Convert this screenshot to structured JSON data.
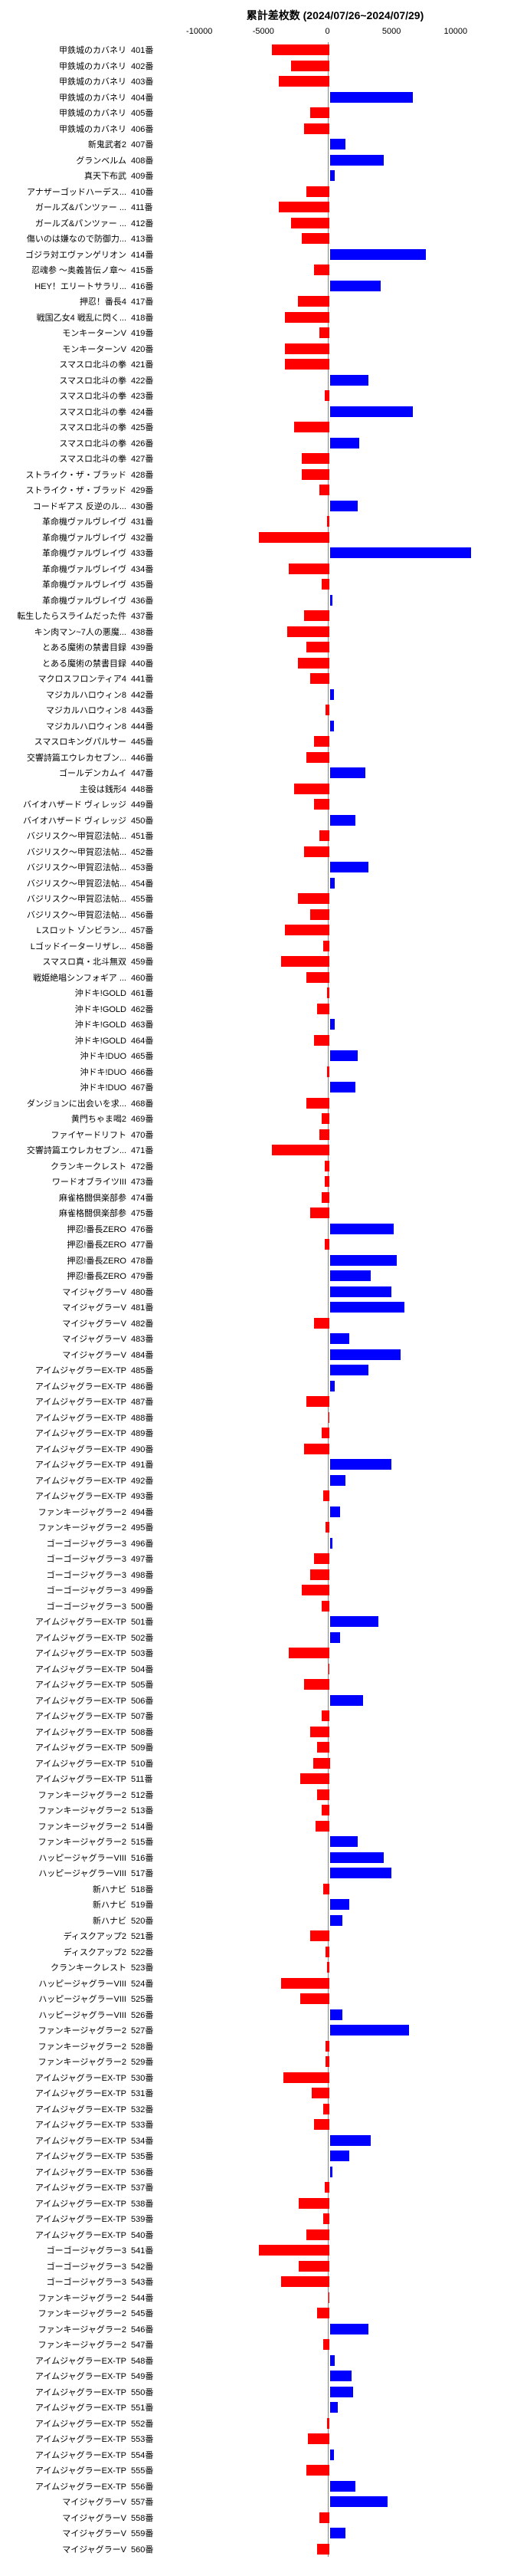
{
  "title": "累計差枚数 (2024/07/26~2024/07/29)",
  "xlim": [
    -13000,
    13000
  ],
  "xticks": [
    -10000,
    -5000,
    0,
    5000,
    10000
  ],
  "colors": {
    "pos": "#0000ff",
    "neg": "#ff0000",
    "bg": "#ffffff"
  },
  "bar_height_ratio": 0.7,
  "row_height": 20.5,
  "label_fontsize": 11,
  "title_fontsize": 14,
  "rows": [
    {
      "label": "甲鉄城のカバネリ",
      "num": "401番",
      "value": -4500
    },
    {
      "label": "甲鉄城のカバネリ",
      "num": "402番",
      "value": -3000
    },
    {
      "label": "甲鉄城のカバネリ",
      "num": "403番",
      "value": -4000
    },
    {
      "label": "甲鉄城のカバネリ",
      "num": "404番",
      "value": 6500
    },
    {
      "label": "甲鉄城のカバネリ",
      "num": "405番",
      "value": -1500
    },
    {
      "label": "甲鉄城のカバネリ",
      "num": "406番",
      "value": -2000
    },
    {
      "label": "新鬼武者2",
      "num": "407番",
      "value": 1200
    },
    {
      "label": "グランベルム",
      "num": "408番",
      "value": 4200
    },
    {
      "label": "真天下布武",
      "num": "409番",
      "value": 400
    },
    {
      "label": "アナザーゴッドハーデス...",
      "num": "410番",
      "value": -1800
    },
    {
      "label": "ガールズ&パンツァー ...",
      "num": "411番",
      "value": -4000
    },
    {
      "label": "ガールズ&パンツァー ...",
      "num": "412番",
      "value": -3000
    },
    {
      "label": "傷いのは嫌なので防御力...",
      "num": "413番",
      "value": -2200
    },
    {
      "label": "ゴジラ対エヴァンゲリオン",
      "num": "414番",
      "value": 7500
    },
    {
      "label": "忍魂参 〜奥義皆伝ノ章〜",
      "num": "415番",
      "value": -1200
    },
    {
      "label": "HEY！エリートサラリ...",
      "num": "416番",
      "value": 4000
    },
    {
      "label": "押忍！番長4",
      "num": "417番",
      "value": -2500
    },
    {
      "label": "戦国乙女4 戦乱に閃く...",
      "num": "418番",
      "value": -3500
    },
    {
      "label": "モンキーターンV",
      "num": "419番",
      "value": -800
    },
    {
      "label": "モンキーターンV",
      "num": "420番",
      "value": -3500
    },
    {
      "label": "スマスロ北斗の拳",
      "num": "421番",
      "value": -3500
    },
    {
      "label": "スマスロ北斗の拳",
      "num": "422番",
      "value": 3000
    },
    {
      "label": "スマスロ北斗の拳",
      "num": "423番",
      "value": -400
    },
    {
      "label": "スマスロ北斗の拳",
      "num": "424番",
      "value": 6500
    },
    {
      "label": "スマスロ北斗の拳",
      "num": "425番",
      "value": -2800
    },
    {
      "label": "スマスロ北斗の拳",
      "num": "426番",
      "value": 2300
    },
    {
      "label": "スマスロ北斗の拳",
      "num": "427番",
      "value": -2200
    },
    {
      "label": "ストライク・ザ・ブラッド",
      "num": "428番",
      "value": -2200
    },
    {
      "label": "ストライク・ザ・ブラッド",
      "num": "429番",
      "value": -800
    },
    {
      "label": "コードギアス 反逆のル...",
      "num": "430番",
      "value": 2200
    },
    {
      "label": "革命機ヴァルヴレイヴ",
      "num": "431番",
      "value": -200
    },
    {
      "label": "革命機ヴァルヴレイヴ",
      "num": "432番",
      "value": -5500
    },
    {
      "label": "革命機ヴァルヴレイヴ",
      "num": "433番",
      "value": 11000
    },
    {
      "label": "革命機ヴァルヴレイヴ",
      "num": "434番",
      "value": -3200
    },
    {
      "label": "革命機ヴァルヴレイヴ",
      "num": "435番",
      "value": -600
    },
    {
      "label": "革命機ヴァルヴレイヴ",
      "num": "436番",
      "value": 200
    },
    {
      "label": "転生したらスライムだった件",
      "num": "437番",
      "value": -2000
    },
    {
      "label": "キン肉マン~7人の悪魔...",
      "num": "438番",
      "value": -3300
    },
    {
      "label": "とある魔術の禁書目録",
      "num": "439番",
      "value": -1800
    },
    {
      "label": "とある魔術の禁書目録",
      "num": "440番",
      "value": -2500
    },
    {
      "label": "マクロスフロンティア4",
      "num": "441番",
      "value": -1500
    },
    {
      "label": "マジカルハロウィン8",
      "num": "442番",
      "value": 300
    },
    {
      "label": "マジカルハロウィン8",
      "num": "443番",
      "value": -300
    },
    {
      "label": "マジカルハロウィン8",
      "num": "444番",
      "value": 300
    },
    {
      "label": "スマスロキングパルサー",
      "num": "445番",
      "value": -1200
    },
    {
      "label": "交響詩篇エウレカセブン...",
      "num": "446番",
      "value": -1800
    },
    {
      "label": "ゴールデンカムイ",
      "num": "447番",
      "value": 2800
    },
    {
      "label": "主役は銭形4",
      "num": "448番",
      "value": -2800
    },
    {
      "label": "バイオハザード ヴィレッジ",
      "num": "449番",
      "value": -1200
    },
    {
      "label": "バイオハザード ヴィレッジ",
      "num": "450番",
      "value": 2000
    },
    {
      "label": "バジリスク〜甲賀忍法帖...",
      "num": "451番",
      "value": -800
    },
    {
      "label": "バジリスク〜甲賀忍法帖...",
      "num": "452番",
      "value": -2000
    },
    {
      "label": "バジリスク〜甲賀忍法帖...",
      "num": "453番",
      "value": 3000
    },
    {
      "label": "バジリスク〜甲賀忍法帖...",
      "num": "454番",
      "value": 400
    },
    {
      "label": "バジリスク〜甲賀忍法帖...",
      "num": "455番",
      "value": -2500
    },
    {
      "label": "バジリスク〜甲賀忍法帖...",
      "num": "456番",
      "value": -1500
    },
    {
      "label": "Lスロット ゾンビラン...",
      "num": "457番",
      "value": -3500
    },
    {
      "label": "Lゴッドイーターリザレ...",
      "num": "458番",
      "value": -500
    },
    {
      "label": "スマスロ真・北斗無双",
      "num": "459番",
      "value": -3800
    },
    {
      "label": "戦姫絶唱シンフォギア ...",
      "num": "460番",
      "value": -1800
    },
    {
      "label": "沖ドキ!GOLD",
      "num": "461番",
      "value": -200
    },
    {
      "label": "沖ドキ!GOLD",
      "num": "462番",
      "value": -1000
    },
    {
      "label": "沖ドキ!GOLD",
      "num": "463番",
      "value": 400
    },
    {
      "label": "沖ドキ!GOLD",
      "num": "464番",
      "value": -1200
    },
    {
      "label": "沖ドキ!DUO",
      "num": "465番",
      "value": 2200
    },
    {
      "label": "沖ドキ!DUO",
      "num": "466番",
      "value": -200
    },
    {
      "label": "沖ドキ!DUO",
      "num": "467番",
      "value": 2000
    },
    {
      "label": "ダンジョンに出会いを求...",
      "num": "468番",
      "value": -1800
    },
    {
      "label": "黄門ちゃま喝2",
      "num": "469番",
      "value": -600
    },
    {
      "label": "ファイヤードリフト",
      "num": "470番",
      "value": -800
    },
    {
      "label": "交響詩篇エウレカセブン...",
      "num": "471番",
      "value": -4500
    },
    {
      "label": "クランキークレスト",
      "num": "472番",
      "value": -400
    },
    {
      "label": "ワードオブライツIII",
      "num": "473番",
      "value": -400
    },
    {
      "label": "麻雀格闘倶楽部参",
      "num": "474番",
      "value": -600
    },
    {
      "label": "麻雀格闘倶楽部参",
      "num": "475番",
      "value": -1500
    },
    {
      "label": "押忍!番長ZERO",
      "num": "476番",
      "value": 5000
    },
    {
      "label": "押忍!番長ZERO",
      "num": "477番",
      "value": -400
    },
    {
      "label": "押忍!番長ZERO",
      "num": "478番",
      "value": 5200
    },
    {
      "label": "押忍!番長ZERO",
      "num": "479番",
      "value": 3200
    },
    {
      "label": "マイジャグラーV",
      "num": "480番",
      "value": 4800
    },
    {
      "label": "マイジャグラーV",
      "num": "481番",
      "value": 5800
    },
    {
      "label": "マイジャグラーV",
      "num": "482番",
      "value": -1200
    },
    {
      "label": "マイジャグラーV",
      "num": "483番",
      "value": 1500
    },
    {
      "label": "マイジャグラーV",
      "num": "484番",
      "value": 5500
    },
    {
      "label": "アイムジャグラーEX-TP",
      "num": "485番",
      "value": 3000
    },
    {
      "label": "アイムジャグラーEX-TP",
      "num": "486番",
      "value": 400
    },
    {
      "label": "アイムジャグラーEX-TP",
      "num": "487番",
      "value": -1800
    },
    {
      "label": "アイムジャグラーEX-TP",
      "num": "488番",
      "value": -100
    },
    {
      "label": "アイムジャグラーEX-TP",
      "num": "489番",
      "value": -600
    },
    {
      "label": "アイムジャグラーEX-TP",
      "num": "490番",
      "value": -2000
    },
    {
      "label": "アイムジャグラーEX-TP",
      "num": "491番",
      "value": 4800
    },
    {
      "label": "アイムジャグラーEX-TP",
      "num": "492番",
      "value": 1200
    },
    {
      "label": "アイムジャグラーEX-TP",
      "num": "493番",
      "value": -500
    },
    {
      "label": "ファンキージャグラー2",
      "num": "494番",
      "value": 800
    },
    {
      "label": "ファンキージャグラー2",
      "num": "495番",
      "value": -300
    },
    {
      "label": "ゴーゴージャグラー3",
      "num": "496番",
      "value": 200
    },
    {
      "label": "ゴーゴージャグラー3",
      "num": "497番",
      "value": -1200
    },
    {
      "label": "ゴーゴージャグラー3",
      "num": "498番",
      "value": -1500
    },
    {
      "label": "ゴーゴージャグラー3",
      "num": "499番",
      "value": -2200
    },
    {
      "label": "ゴーゴージャグラー3",
      "num": "500番",
      "value": -600
    },
    {
      "label": "アイムジャグラーEX-TP",
      "num": "501番",
      "value": 3800
    },
    {
      "label": "アイムジャグラーEX-TP",
      "num": "502番",
      "value": 800
    },
    {
      "label": "アイムジャグラーEX-TP",
      "num": "503番",
      "value": -3200
    },
    {
      "label": "アイムジャグラーEX-TP",
      "num": "504番",
      "value": -100
    },
    {
      "label": "アイムジャグラーEX-TP",
      "num": "505番",
      "value": -2000
    },
    {
      "label": "アイムジャグラーEX-TP",
      "num": "506番",
      "value": 2600
    },
    {
      "label": "アイムジャグラーEX-TP",
      "num": "507番",
      "value": -600
    },
    {
      "label": "アイムジャグラーEX-TP",
      "num": "508番",
      "value": -1500
    },
    {
      "label": "アイムジャグラーEX-TP",
      "num": "509番",
      "value": -1000
    },
    {
      "label": "アイムジャグラーEX-TP",
      "num": "510番",
      "value": -1300
    },
    {
      "label": "アイムジャグラーEX-TP",
      "num": "511番",
      "value": -2300
    },
    {
      "label": "ファンキージャグラー2",
      "num": "512番",
      "value": -1000
    },
    {
      "label": "ファンキージャグラー2",
      "num": "513番",
      "value": -600
    },
    {
      "label": "ファンキージャグラー2",
      "num": "514番",
      "value": -1100
    },
    {
      "label": "ファンキージャグラー2",
      "num": "515番",
      "value": 2200
    },
    {
      "label": "ハッピージャグラーVIII",
      "num": "516番",
      "value": 4200
    },
    {
      "label": "ハッピージャグラーVIII",
      "num": "517番",
      "value": 4800
    },
    {
      "label": "新ハナビ",
      "num": "518番",
      "value": -500
    },
    {
      "label": "新ハナビ",
      "num": "519番",
      "value": 1500
    },
    {
      "label": "新ハナビ",
      "num": "520番",
      "value": 1000
    },
    {
      "label": "ディスクアップ2",
      "num": "521番",
      "value": -1500
    },
    {
      "label": "ディスクアップ2",
      "num": "522番",
      "value": -300
    },
    {
      "label": "クランキークレスト",
      "num": "523番",
      "value": -200
    },
    {
      "label": "ハッピージャグラーVIII",
      "num": "524番",
      "value": -3800
    },
    {
      "label": "ハッピージャグラーVIII",
      "num": "525番",
      "value": -2300
    },
    {
      "label": "ハッピージャグラーVIII",
      "num": "526番",
      "value": 1000
    },
    {
      "label": "ファンキージャグラー2",
      "num": "527番",
      "value": 6200
    },
    {
      "label": "ファンキージャグラー2",
      "num": "528番",
      "value": -300
    },
    {
      "label": "ファンキージャグラー2",
      "num": "529番",
      "value": -300
    },
    {
      "label": "アイムジャグラーEX-TP",
      "num": "530番",
      "value": -3600
    },
    {
      "label": "アイムジャグラーEX-TP",
      "num": "531番",
      "value": -1400
    },
    {
      "label": "アイムジャグラーEX-TP",
      "num": "532番",
      "value": -500
    },
    {
      "label": "アイムジャグラーEX-TP",
      "num": "533番",
      "value": -1200
    },
    {
      "label": "アイムジャグラーEX-TP",
      "num": "534番",
      "value": 3200
    },
    {
      "label": "アイムジャグラーEX-TP",
      "num": "535番",
      "value": 1500
    },
    {
      "label": "アイムジャグラーEX-TP",
      "num": "536番",
      "value": 200
    },
    {
      "label": "アイムジャグラーEX-TP",
      "num": "537番",
      "value": -400
    },
    {
      "label": "アイムジャグラーEX-TP",
      "num": "538番",
      "value": -2400
    },
    {
      "label": "アイムジャグラーEX-TP",
      "num": "539番",
      "value": -500
    },
    {
      "label": "アイムジャグラーEX-TP",
      "num": "540番",
      "value": -1800
    },
    {
      "label": "ゴーゴージャグラー3",
      "num": "541番",
      "value": -5500
    },
    {
      "label": "ゴーゴージャグラー3",
      "num": "542番",
      "value": -2400
    },
    {
      "label": "ゴーゴージャグラー3",
      "num": "543番",
      "value": -3800
    },
    {
      "label": "ファンキージャグラー2",
      "num": "544番",
      "value": -100
    },
    {
      "label": "ファンキージャグラー2",
      "num": "545番",
      "value": -1000
    },
    {
      "label": "ファンキージャグラー2",
      "num": "546番",
      "value": 3000
    },
    {
      "label": "ファンキージャグラー2",
      "num": "547番",
      "value": -500
    },
    {
      "label": "アイムジャグラーEX-TP",
      "num": "548番",
      "value": 400
    },
    {
      "label": "アイムジャグラーEX-TP",
      "num": "549番",
      "value": 1700
    },
    {
      "label": "アイムジャグラーEX-TP",
      "num": "550番",
      "value": 1800
    },
    {
      "label": "アイムジャグラーEX-TP",
      "num": "551番",
      "value": 600
    },
    {
      "label": "アイムジャグラーEX-TP",
      "num": "552番",
      "value": -200
    },
    {
      "label": "アイムジャグラーEX-TP",
      "num": "553番",
      "value": -1700
    },
    {
      "label": "アイムジャグラーEX-TP",
      "num": "554番",
      "value": 300
    },
    {
      "label": "アイムジャグラーEX-TP",
      "num": "555番",
      "value": -1800
    },
    {
      "label": "アイムジャグラーEX-TP",
      "num": "556番",
      "value": 2000
    },
    {
      "label": "マイジャグラーV",
      "num": "557番",
      "value": 4500
    },
    {
      "label": "マイジャグラーV",
      "num": "558番",
      "value": -800
    },
    {
      "label": "マイジャグラーV",
      "num": "559番",
      "value": 1200
    },
    {
      "label": "マイジャグラーV",
      "num": "560番",
      "value": -1000
    }
  ]
}
